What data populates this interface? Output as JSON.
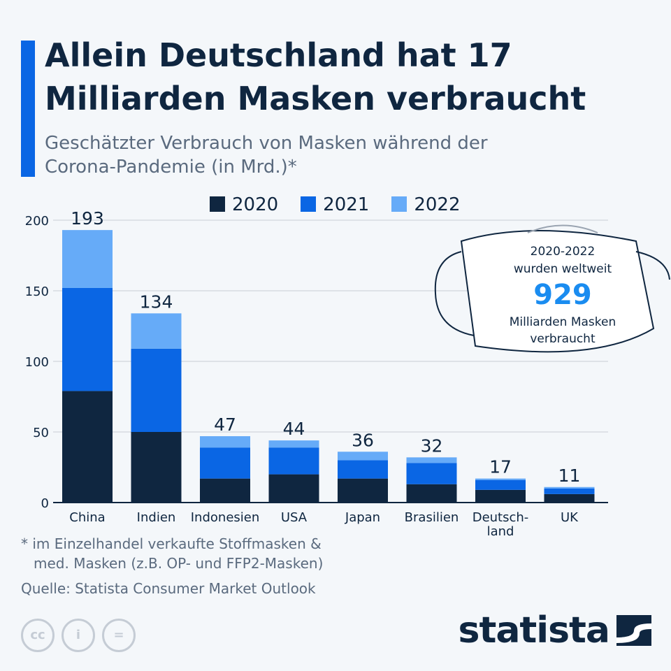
{
  "title": "Allein Deutschland hat 17 Milliarden Masken verbraucht",
  "subtitle": "Geschätzter Verbrauch von Masken während der Corona-Pandemie (in Mrd.)*",
  "chart_data": {
    "type": "bar",
    "stacked": true,
    "categories": [
      "China",
      "Indien",
      "Indonesien",
      "USA",
      "Japan",
      "Brasilien",
      "Deutsch-land",
      "UK"
    ],
    "series": [
      {
        "name": "2020",
        "color": "#0f2640",
        "values": [
          79,
          50,
          17,
          20,
          17,
          13,
          9,
          6
        ]
      },
      {
        "name": "2021",
        "color": "#0a66e4",
        "values": [
          73,
          59,
          22,
          19,
          13,
          15,
          7,
          4
        ]
      },
      {
        "name": "2022",
        "color": "#66abf8",
        "values": [
          41,
          25,
          8,
          5,
          6,
          4,
          1,
          1
        ]
      }
    ],
    "totals": [
      "193",
      "134",
      "47",
      "44",
      "36",
      "32",
      "17",
      "11"
    ],
    "yticks": [
      "0",
      "50",
      "100",
      "150",
      "200"
    ],
    "ylim": [
      0,
      200
    ],
    "grid": true,
    "legend": "top"
  },
  "callout": {
    "line1": "2020-2022",
    "line2": "wurden weltweit",
    "value": "929",
    "line3": "Milliarden Masken",
    "line4": "verbraucht"
  },
  "footnote1": "* im Einzelhandel verkaufte Stoffmasken &",
  "footnote2": "med. Masken (z.B. OP- und FFP2-Masken)",
  "source": "Quelle: Statista Consumer Market Outlook",
  "logo": "statista",
  "license_icons": [
    "cc-icon",
    "by-icon",
    "nd-icon"
  ]
}
